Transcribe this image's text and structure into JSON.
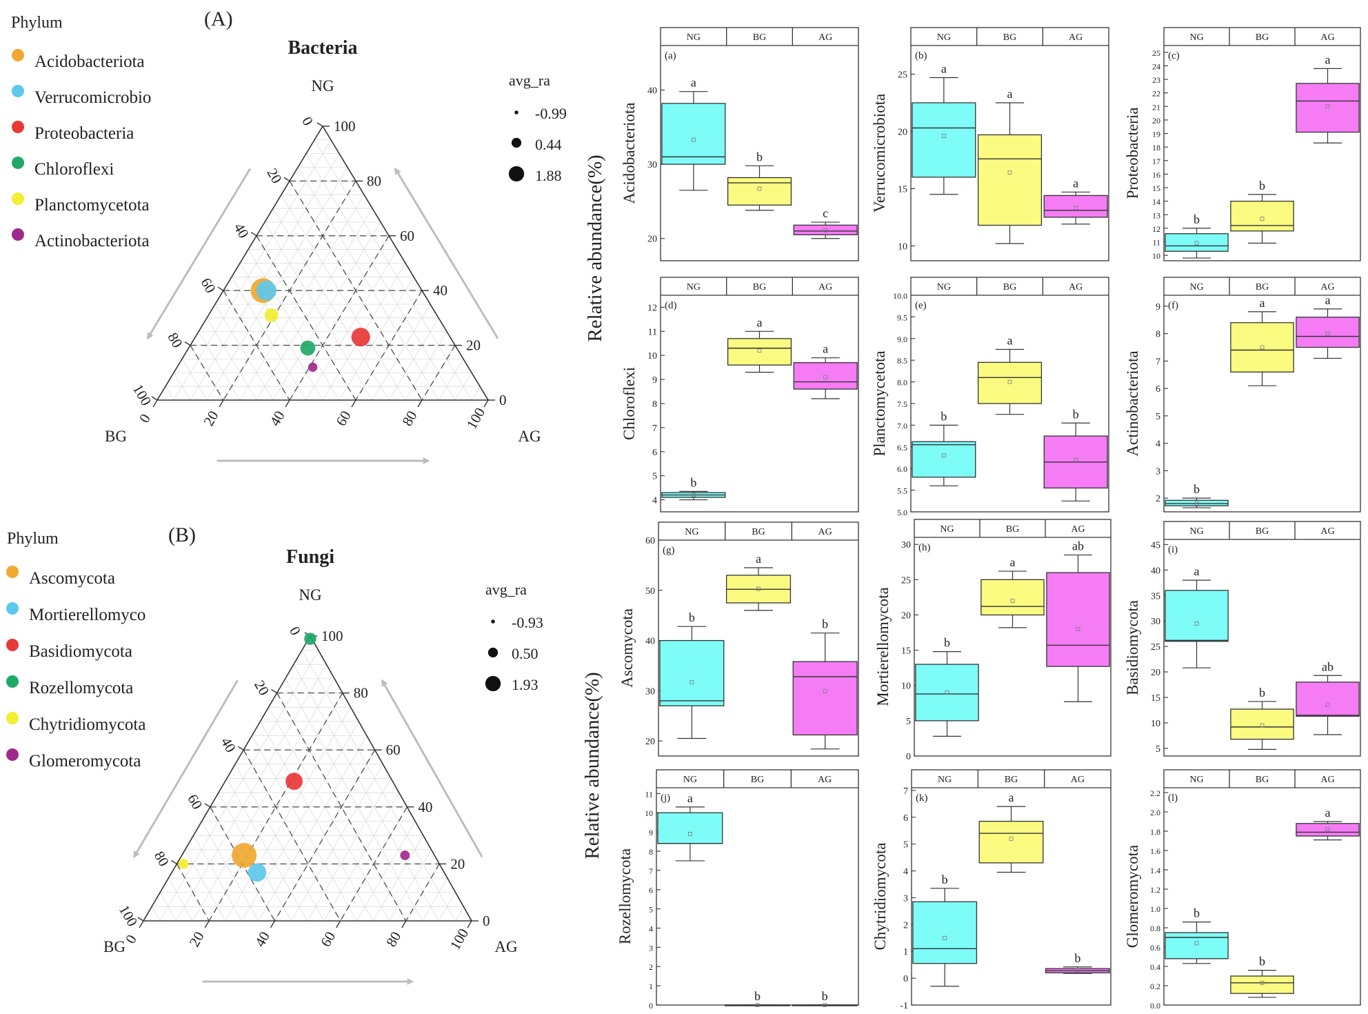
{
  "chart_data": [
    {
      "type": "ternary-bubble",
      "panel_letter": "(A)",
      "title": "Bacteria",
      "legend_title": "Phylum",
      "axes": {
        "top": "NG",
        "left": "BG",
        "right": "AG"
      },
      "ticks": [
        "0",
        "20",
        "40",
        "60",
        "80",
        "100"
      ],
      "size_legend": {
        "title": "avg_ra",
        "labels": [
          "-0.99",
          "0.44",
          "1.88"
        ],
        "values": [
          -0.99,
          0.44,
          1.88
        ]
      },
      "series": [
        {
          "name": "Acidobacteriota",
          "color": "#f0a830",
          "ng": 40,
          "bg": 48,
          "ag": 12,
          "avg_ra": 1.88
        },
        {
          "name": "Verrucomicrobio",
          "color": "#5cc8ec",
          "ng": 40,
          "bg": 47,
          "ag": 13,
          "avg_ra": 1.1
        },
        {
          "name": "Proteobacteria",
          "color": "#e83838",
          "ng": 23,
          "bg": 27,
          "ag": 50,
          "avg_ra": 0.9
        },
        {
          "name": "Chloroflexi",
          "color": "#20a868",
          "ng": 19,
          "bg": 45,
          "ag": 36,
          "avg_ra": 0.3
        },
        {
          "name": "Planctomycetota",
          "color": "#f2ee30",
          "ng": 31,
          "bg": 50,
          "ag": 19,
          "avg_ra": 0.1
        },
        {
          "name": "Actinobacteriota",
          "color": "#a02a8c",
          "ng": 12,
          "bg": 47,
          "ag": 41,
          "avg_ra": -0.6
        }
      ]
    },
    {
      "type": "ternary-bubble",
      "panel_letter": "(B)",
      "title": "Fungi",
      "legend_title": "Phylum",
      "axes": {
        "top": "NG",
        "left": "BG",
        "right": "AG"
      },
      "ticks": [
        "0",
        "20",
        "40",
        "60",
        "80",
        "100"
      ],
      "size_legend": {
        "title": "avg_ra",
        "labels": [
          "-0.93",
          "0.50",
          "1.93"
        ],
        "values": [
          -0.93,
          0.5,
          1.93
        ]
      },
      "series": [
        {
          "name": "Ascomycota",
          "color": "#f0a830",
          "ng": 23,
          "bg": 58,
          "ag": 19,
          "avg_ra": 1.93
        },
        {
          "name": "Mortierellomyco",
          "color": "#5cc8ec",
          "ng": 17,
          "bg": 57,
          "ag": 26,
          "avg_ra": 0.9
        },
        {
          "name": "Basidiomycota",
          "color": "#e83838",
          "ng": 49,
          "bg": 30,
          "ag": 21,
          "avg_ra": 0.7
        },
        {
          "name": "Rozellomycota",
          "color": "#20a868",
          "ng": 99,
          "bg": 0.5,
          "ag": 0.5,
          "avg_ra": -0.1
        },
        {
          "name": "Chytridiomycota",
          "color": "#f2ee30",
          "ng": 20,
          "bg": 78,
          "ag": 2,
          "avg_ra": -0.4
        },
        {
          "name": "Glomeromycota",
          "color": "#a02a8c",
          "ng": 23,
          "bg": 9,
          "ag": 68,
          "avg_ra": -0.5
        }
      ]
    },
    {
      "type": "box",
      "panel_label": "(a)",
      "ylabel": "Acidobacteriota",
      "categories": [
        "NG",
        "BG",
        "AG"
      ],
      "ylim": [
        17,
        46
      ],
      "yticks": [
        20,
        30,
        40
      ],
      "boxes": [
        {
          "min": 26.5,
          "q1": 30.0,
          "median": 31.0,
          "q3": 38.2,
          "max": 39.8,
          "mean": 33.3,
          "letter": "a"
        },
        {
          "min": 23.8,
          "q1": 24.5,
          "median": 27.5,
          "q3": 28.2,
          "max": 29.8,
          "mean": 26.7,
          "letter": "b"
        },
        {
          "min": 20.0,
          "q1": 20.5,
          "median": 21.0,
          "q3": 21.8,
          "max": 22.2,
          "mean": 21.1,
          "letter": "c"
        }
      ]
    },
    {
      "type": "box",
      "panel_label": "(b)",
      "ylabel": "Verrucomicrobiota",
      "categories": [
        "NG",
        "BG",
        "AG"
      ],
      "ylim": [
        8.7,
        27.5
      ],
      "yticks": [
        10,
        15,
        20,
        25
      ],
      "boxes": [
        {
          "min": 14.5,
          "q1": 16.0,
          "median": 20.3,
          "q3": 22.5,
          "max": 24.7,
          "mean": 19.6,
          "letter": "a"
        },
        {
          "min": 10.2,
          "q1": 11.8,
          "median": 17.6,
          "q3": 19.7,
          "max": 22.5,
          "mean": 16.4,
          "letter": "a"
        },
        {
          "min": 11.9,
          "q1": 12.5,
          "median": 13.1,
          "q3": 14.4,
          "max": 14.7,
          "mean": 13.3,
          "letter": "a"
        }
      ]
    },
    {
      "type": "box",
      "panel_label": "(c)",
      "ylabel": "Proteobacteria",
      "categories": [
        "NG",
        "BG",
        "AG"
      ],
      "ylim": [
        9.6,
        25.5
      ],
      "yticks": [
        10,
        11,
        12,
        13,
        14,
        15,
        16,
        17,
        18,
        19,
        20,
        21,
        22,
        23,
        24,
        25
      ],
      "boxes": [
        {
          "min": 9.8,
          "q1": 10.3,
          "median": 10.7,
          "q3": 11.6,
          "max": 12.0,
          "mean": 10.9,
          "letter": "b"
        },
        {
          "min": 10.9,
          "q1": 11.8,
          "median": 12.2,
          "q3": 14.0,
          "max": 14.5,
          "mean": 12.7,
          "letter": "b"
        },
        {
          "min": 18.3,
          "q1": 19.1,
          "median": 21.4,
          "q3": 22.7,
          "max": 23.8,
          "mean": 21.0,
          "letter": "a"
        }
      ]
    },
    {
      "type": "box",
      "panel_label": "(d)",
      "ylabel": "Chloroflexi",
      "categories": [
        "NG",
        "BG",
        "AG"
      ],
      "ylim": [
        3.5,
        12.5
      ],
      "yticks": [
        4,
        5,
        6,
        7,
        8,
        9,
        10,
        11,
        12
      ],
      "boxes": [
        {
          "min": 4.0,
          "q1": 4.1,
          "median": 4.2,
          "q3": 4.3,
          "max": 4.35,
          "mean": 4.2,
          "letter": "b"
        },
        {
          "min": 9.3,
          "q1": 9.6,
          "median": 10.3,
          "q3": 10.7,
          "max": 11.0,
          "mean": 10.2,
          "letter": "a"
        },
        {
          "min": 8.2,
          "q1": 8.6,
          "median": 8.9,
          "q3": 9.7,
          "max": 9.9,
          "mean": 9.1,
          "letter": "a"
        }
      ]
    },
    {
      "type": "box",
      "panel_label": "(e)",
      "ylabel": "Planctomycetota",
      "categories": [
        "NG",
        "BG",
        "AG"
      ],
      "ylim": [
        5.0,
        10.0
      ],
      "yticks": [
        5.0,
        5.5,
        6.0,
        6.5,
        7.0,
        7.5,
        8.0,
        8.5,
        9.0,
        9.5,
        10.0
      ],
      "boxes": [
        {
          "min": 5.6,
          "q1": 5.8,
          "median": 6.55,
          "q3": 6.62,
          "max": 7.0,
          "mean": 6.3,
          "letter": "b"
        },
        {
          "min": 7.25,
          "q1": 7.5,
          "median": 8.1,
          "q3": 8.45,
          "max": 8.75,
          "mean": 8.0,
          "letter": "a"
        },
        {
          "min": 5.25,
          "q1": 5.55,
          "median": 6.15,
          "q3": 6.75,
          "max": 7.05,
          "mean": 6.2,
          "letter": "b"
        }
      ]
    },
    {
      "type": "box",
      "panel_label": "(f)",
      "ylabel": "Actinobacteriota",
      "categories": [
        "NG",
        "BG",
        "AG"
      ],
      "ylim": [
        1.5,
        9.4
      ],
      "yticks": [
        2,
        3,
        4,
        5,
        6,
        7,
        8,
        9
      ],
      "boxes": [
        {
          "min": 1.65,
          "q1": 1.72,
          "median": 1.8,
          "q3": 1.92,
          "max": 2.0,
          "mean": 1.8,
          "letter": "b"
        },
        {
          "min": 6.1,
          "q1": 6.6,
          "median": 7.4,
          "q3": 8.4,
          "max": 8.8,
          "mean": 7.5,
          "letter": "a"
        },
        {
          "min": 7.1,
          "q1": 7.5,
          "median": 7.9,
          "q3": 8.6,
          "max": 8.9,
          "mean": 8.0,
          "letter": "a"
        }
      ]
    },
    {
      "type": "box",
      "panel_label": "(g)",
      "ylabel": "Ascomycota",
      "categories": [
        "NG",
        "BG",
        "AG"
      ],
      "ylim": [
        17,
        60
      ],
      "yticks": [
        20,
        30,
        40,
        50,
        60
      ],
      "boxes": [
        {
          "min": 20.5,
          "q1": 27.0,
          "median": 28.0,
          "q3": 40.0,
          "max": 42.8,
          "mean": 31.7,
          "letter": "b"
        },
        {
          "min": 46.0,
          "q1": 47.5,
          "median": 50.2,
          "q3": 53.0,
          "max": 54.5,
          "mean": 50.3,
          "letter": "a"
        },
        {
          "min": 18.4,
          "q1": 21.2,
          "median": 32.8,
          "q3": 35.8,
          "max": 41.5,
          "mean": 29.9,
          "letter": "b"
        }
      ]
    },
    {
      "type": "box",
      "panel_label": "(h)",
      "ylabel": "Mortierellomycota",
      "categories": [
        "NG",
        "BG",
        "AG"
      ],
      "ylim": [
        0,
        31
      ],
      "yticks": [
        0,
        5,
        10,
        15,
        20,
        25,
        30
      ],
      "boxes": [
        {
          "min": 2.8,
          "q1": 5.0,
          "median": 8.8,
          "q3": 13.0,
          "max": 14.8,
          "mean": 9.0,
          "letter": "b"
        },
        {
          "min": 18.2,
          "q1": 20.0,
          "median": 21.2,
          "q3": 25.0,
          "max": 26.2,
          "mean": 22.0,
          "letter": "a"
        },
        {
          "min": 7.7,
          "q1": 12.7,
          "median": 15.7,
          "q3": 26.0,
          "max": 28.5,
          "mean": 18.0,
          "letter": "ab"
        }
      ]
    },
    {
      "type": "box",
      "panel_label": "(i)",
      "ylabel": "Basidiomycota",
      "categories": [
        "NG",
        "BG",
        "AG"
      ],
      "ylim": [
        3.5,
        46
      ],
      "yticks": [
        5,
        10,
        15,
        20,
        25,
        30,
        35,
        40,
        45
      ],
      "boxes": [
        {
          "min": 20.8,
          "q1": 26.0,
          "median": 26.2,
          "q3": 36.0,
          "max": 38.0,
          "mean": 29.5,
          "letter": "a"
        },
        {
          "min": 4.8,
          "q1": 6.8,
          "median": 9.2,
          "q3": 12.7,
          "max": 14.2,
          "mean": 9.5,
          "letter": "b"
        },
        {
          "min": 7.7,
          "q1": 11.3,
          "median": 11.5,
          "q3": 18.0,
          "max": 19.3,
          "mean": 13.6,
          "letter": "ab"
        }
      ]
    },
    {
      "type": "box",
      "panel_label": "(j)",
      "ylabel": "Rozellomycota",
      "categories": [
        "NG",
        "BG",
        "AG"
      ],
      "ylim": [
        0,
        11.3
      ],
      "yticks": [
        0,
        1,
        2,
        3,
        4,
        5,
        6,
        7,
        8,
        9,
        10,
        11
      ],
      "boxes": [
        {
          "min": 7.5,
          "q1": 8.4,
          "median": 8.4,
          "q3": 10.0,
          "max": 10.3,
          "mean": 8.9,
          "letter": "a"
        },
        {
          "min": 0,
          "q1": 0,
          "median": 0,
          "q3": 0,
          "max": 0,
          "mean": 0,
          "letter": "b"
        },
        {
          "min": 0,
          "q1": 0,
          "median": 0,
          "q3": 0,
          "max": 0,
          "mean": 0,
          "letter": "b"
        }
      ]
    },
    {
      "type": "box",
      "panel_label": "(k)",
      "ylabel": "Chytridiomycota",
      "categories": [
        "NG",
        "BG",
        "AG"
      ],
      "ylim": [
        -1,
        7.1
      ],
      "yticks": [
        -1,
        0,
        1,
        2,
        3,
        4,
        5,
        6,
        7
      ],
      "boxes": [
        {
          "min": -0.3,
          "q1": 0.55,
          "median": 1.1,
          "q3": 2.85,
          "max": 3.35,
          "mean": 1.5,
          "letter": "b"
        },
        {
          "min": 3.95,
          "q1": 4.3,
          "median": 5.4,
          "q3": 5.85,
          "max": 6.4,
          "mean": 5.2,
          "letter": "a"
        },
        {
          "min": 0.18,
          "q1": 0.2,
          "median": 0.28,
          "q3": 0.36,
          "max": 0.42,
          "mean": 0.3,
          "letter": "b"
        }
      ]
    },
    {
      "type": "box",
      "panel_label": "(l)",
      "ylabel": "Glomeromycota",
      "categories": [
        "NG",
        "BG",
        "AG"
      ],
      "ylim": [
        0,
        2.25
      ],
      "yticks": [
        0.0,
        0.2,
        0.4,
        0.6,
        0.8,
        1.0,
        1.2,
        1.4,
        1.6,
        1.8,
        2.0,
        2.2
      ],
      "boxes": [
        {
          "min": 0.43,
          "q1": 0.48,
          "median": 0.7,
          "q3": 0.75,
          "max": 0.86,
          "mean": 0.64,
          "letter": "b"
        },
        {
          "min": 0.08,
          "q1": 0.12,
          "median": 0.23,
          "q3": 0.3,
          "max": 0.36,
          "mean": 0.23,
          "letter": "b"
        },
        {
          "min": 1.71,
          "q1": 1.75,
          "median": 1.79,
          "q3": 1.88,
          "max": 1.9,
          "mean": 1.82,
          "letter": "a"
        }
      ]
    }
  ],
  "group_colors": {
    "NG": "#7dfcf8",
    "BG": "#fbfb82",
    "AG": "#f57cf5"
  },
  "shared_ylabel": "Relative abundance(%)"
}
